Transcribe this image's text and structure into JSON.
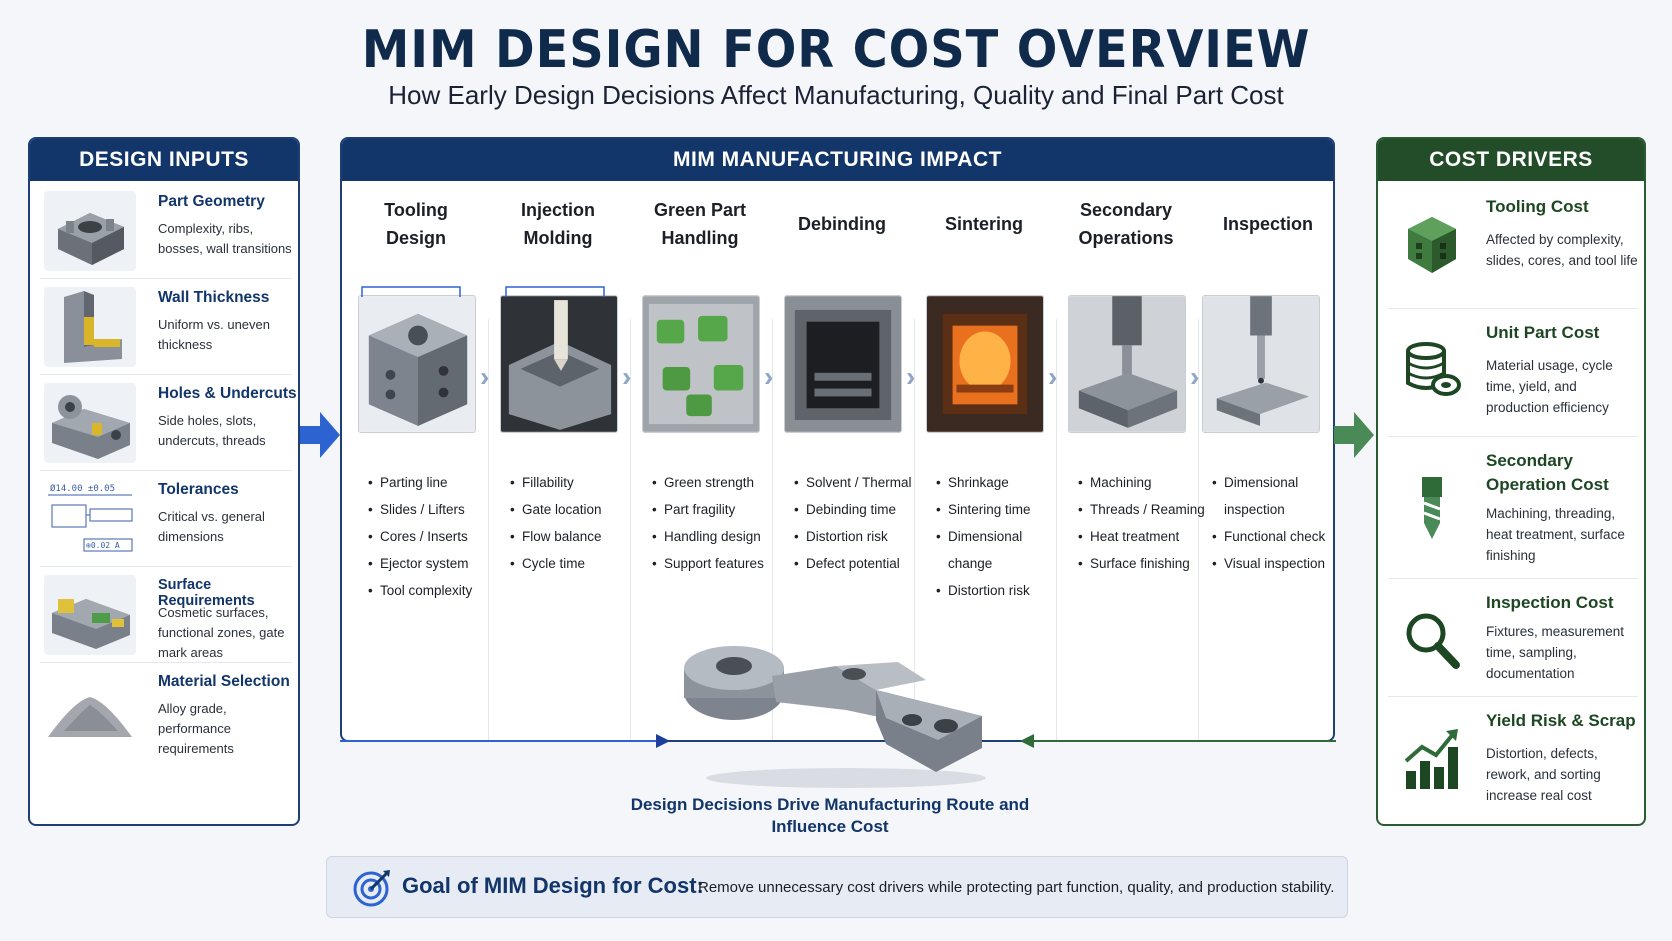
{
  "header": {
    "title": "MIM DESIGN FOR COST OVERVIEW",
    "subtitle": "How Early Design Decisions Affect Manufacturing, Quality and Final Part Cost"
  },
  "design_inputs": {
    "heading": "DESIGN INPUTS",
    "items": [
      {
        "title": "Part Geometry",
        "desc": "Complexity, ribs, bosses, wall transitions"
      },
      {
        "title": "Wall Thickness",
        "desc": "Uniform vs. uneven thickness"
      },
      {
        "title": "Holes & Undercuts",
        "desc": "Side holes, slots, undercuts, threads"
      },
      {
        "title": "Tolerances",
        "desc": "Critical vs. general dimensions"
      },
      {
        "title": "Surface Requirements",
        "desc": "Cosmetic surfaces, functional zones, gate mark areas"
      },
      {
        "title": "Material Selection",
        "desc": "Alloy grade, performance requirements"
      }
    ],
    "tolerance_marks": {
      "dim": "Ø14.00 ±0.05",
      "callout": "⊕0.02 A"
    }
  },
  "impact": {
    "heading": "MIM MANUFACTURING IMPACT",
    "steps": [
      {
        "title": "Tooling Design",
        "bullets": [
          "Parting line",
          "Slides / Lifters",
          "Cores / Inserts",
          "Ejector system",
          "Tool complexity"
        ]
      },
      {
        "title": "Injection Molding",
        "bullets": [
          "Fillability",
          "Gate location",
          "Flow balance",
          "Cycle time"
        ]
      },
      {
        "title": "Green Part Handling",
        "bullets": [
          "Green strength",
          "Part fragility",
          "Handling design",
          "Support features"
        ]
      },
      {
        "title": "Debinding",
        "bullets": [
          "Solvent / Thermal",
          "Debinding time",
          "Distortion risk",
          "Defect potential"
        ]
      },
      {
        "title": "Sintering",
        "bullets": [
          "Shrinkage",
          "Sintering time",
          "Dimensional change",
          "Distortion risk"
        ]
      },
      {
        "title": "Secondary Operations",
        "bullets": [
          "Machining",
          "Threads / Reaming",
          "Heat treatment",
          "Surface finishing"
        ]
      },
      {
        "title": "Inspection",
        "bullets": [
          "Dimensional inspection",
          "Functional check",
          "Visual inspection"
        ]
      }
    ],
    "caption": "Design Decisions Drive Manufacturing Route and Influence Cost"
  },
  "cost_drivers": {
    "heading": "COST DRIVERS",
    "items": [
      {
        "title": "Tooling Cost",
        "desc": "Affected by complexity, slides, cores, and tool life",
        "icon": "mold-cube-icon"
      },
      {
        "title": "Unit Part Cost",
        "desc": "Material usage, cycle time, yield, and production efficiency",
        "icon": "coin-stack-icon"
      },
      {
        "title": "Secondary Operation Cost",
        "desc": "Machining, threading, heat treatment, surface finishing",
        "icon": "drill-bit-icon"
      },
      {
        "title": "Inspection Cost",
        "desc": "Fixtures, measurement time, sampling, documentation",
        "icon": "magnifier-icon"
      },
      {
        "title": "Yield Risk & Scrap",
        "desc": "Distortion, defects, rework, and sorting increase real cost",
        "icon": "bar-trend-icon"
      }
    ]
  },
  "goal": {
    "title": "Goal of MIM Design for Cost:",
    "text": "Remove unnecessary cost drivers while protecting part function, quality, and production stability."
  },
  "colors": {
    "navy": "#12356a",
    "green": "#234d29",
    "arrow_blue": "#2d63d1",
    "arrow_green": "#4a8a57"
  }
}
